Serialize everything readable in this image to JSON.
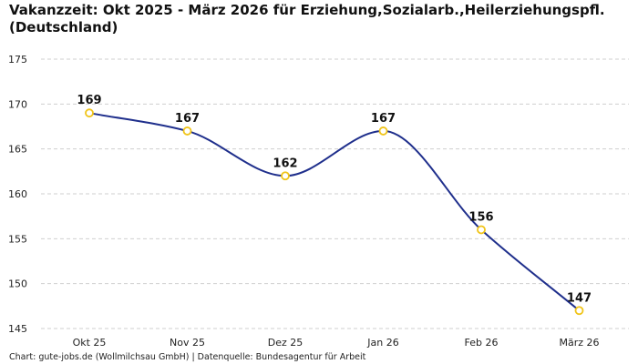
{
  "chart_data": {
    "type": "line",
    "title_line1": "Vakanzzeit: Okt 2025 - März 2026 für Erziehung,Sozialarb.,Heilerziehungspfl.",
    "title_line2": "(Deutschland)",
    "categories": [
      "Okt 25",
      "Nov 25",
      "Dez 25",
      "Jan 26",
      "Feb 26",
      "März 26"
    ],
    "series": [
      {
        "values": [
          169,
          167,
          162,
          167,
          156,
          147
        ]
      }
    ],
    "data_labels": [
      "169",
      "167",
      "162",
      "167",
      "156",
      "147"
    ],
    "yticks": [
      "145",
      "150",
      "155",
      "160",
      "165",
      "170",
      "175"
    ],
    "ylim": [
      145,
      175
    ],
    "grid": true,
    "line_color": "#1f2f8c",
    "marker_color": "#f0c419",
    "grid_color": "#cfcfcf"
  },
  "footer": "Chart: gute-jobs.de (Wollmilchsau GmbH) | Datenquelle: Bundesagentur für Arbeit"
}
